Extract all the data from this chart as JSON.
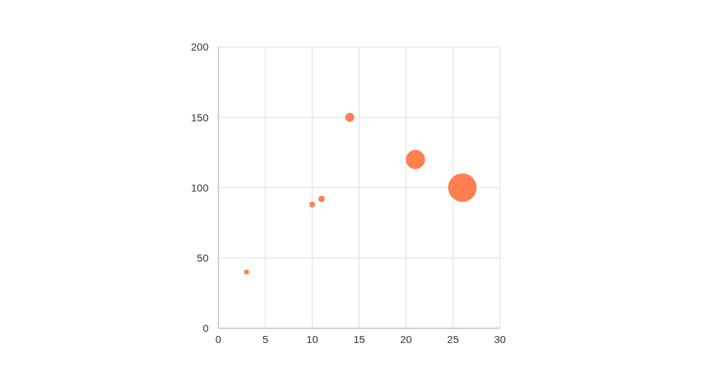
{
  "chart_data": {
    "type": "bubble",
    "x": [
      3,
      10,
      11,
      14,
      21,
      26
    ],
    "values": [
      40,
      88,
      92,
      150,
      120,
      100
    ],
    "sizes": [
      0.03,
      0.04,
      0.05,
      0.1,
      0.45,
      1
    ],
    "color": "#ff7f50",
    "xlim": [
      0,
      30
    ],
    "xticks": [
      0,
      5,
      10,
      15,
      20,
      25,
      30
    ],
    "ylim": [
      0,
      200
    ],
    "yticks": [
      0,
      50,
      100,
      150,
      200
    ],
    "grid": true
  }
}
